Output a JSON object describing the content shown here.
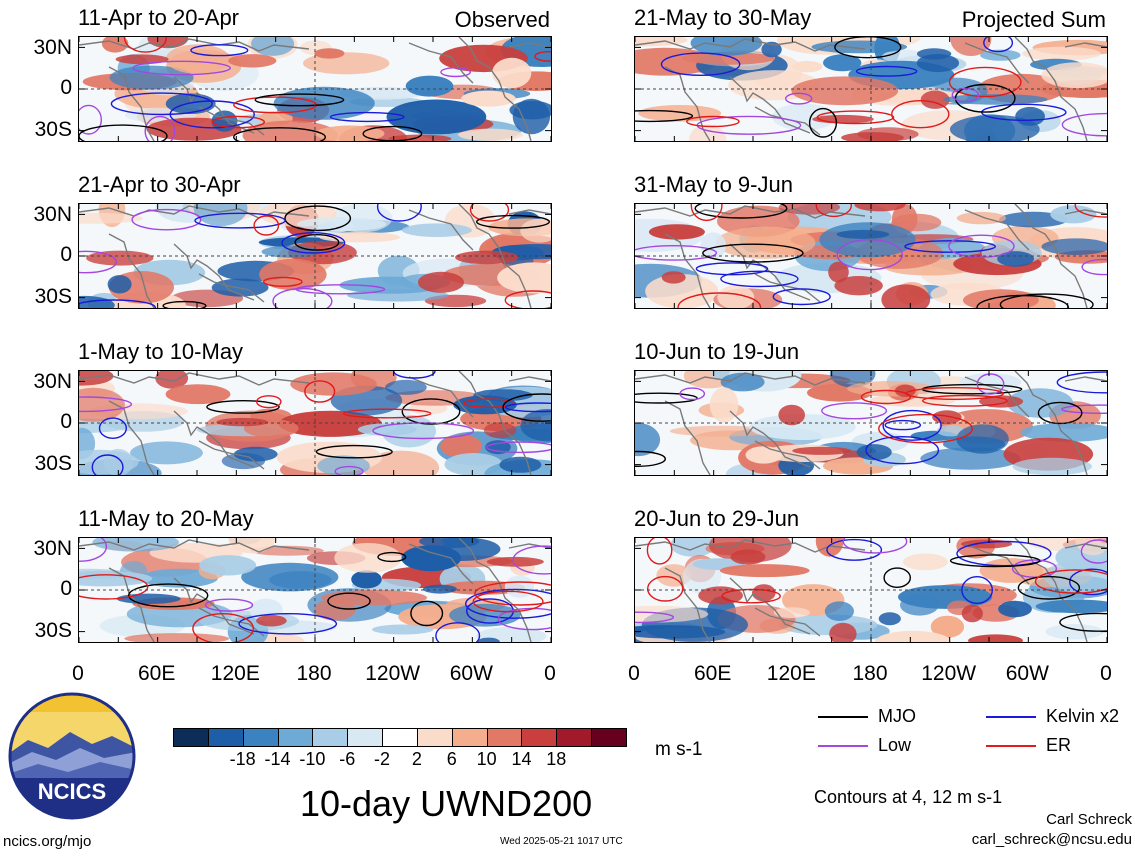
{
  "figure": {
    "title": "10-day UWND200",
    "units": "m s-1",
    "contours_note": "Contours at 4, 12 m s-1",
    "author": "Carl Schreck",
    "email": "carl_schreck@ncsu.edu",
    "website": "ncics.org/mjo",
    "timestamp": "Wed 2025-05-21 1017 UTC",
    "logo_text": "NCICS"
  },
  "chart_data": [
    {
      "type": "heatmap",
      "title": "11-Apr to 20-Apr",
      "corner_label": "Observed",
      "y_ticks": [
        "30N",
        "0",
        "30S"
      ],
      "x_ticks": []
    },
    {
      "type": "heatmap",
      "title": "21-Apr to 30-Apr",
      "corner_label": "",
      "y_ticks": [
        "30N",
        "0",
        "30S"
      ],
      "x_ticks": []
    },
    {
      "type": "heatmap",
      "title": "1-May to 10-May",
      "corner_label": "",
      "y_ticks": [
        "30N",
        "0",
        "30S"
      ],
      "x_ticks": []
    },
    {
      "type": "heatmap",
      "title": "11-May to 20-May",
      "corner_label": "",
      "y_ticks": [
        "30N",
        "0",
        "30S"
      ],
      "x_ticks": [
        "0",
        "60E",
        "120E",
        "180",
        "120W",
        "60W",
        "0"
      ]
    },
    {
      "type": "heatmap",
      "title": "21-May to 30-May",
      "corner_label": "Projected Sum",
      "y_ticks": [],
      "x_ticks": []
    },
    {
      "type": "heatmap",
      "title": "31-May to 9-Jun",
      "corner_label": "",
      "y_ticks": [],
      "x_ticks": []
    },
    {
      "type": "heatmap",
      "title": "10-Jun to 19-Jun",
      "corner_label": "",
      "y_ticks": [],
      "x_ticks": []
    },
    {
      "type": "heatmap",
      "title": "20-Jun to 29-Jun",
      "corner_label": "",
      "y_ticks": [],
      "x_ticks": [
        "0",
        "60E",
        "120E",
        "180",
        "120W",
        "60W",
        "0"
      ]
    }
  ],
  "colorbar": {
    "labels": [
      "-18",
      "-14",
      "-10",
      "-6",
      "-2",
      "2",
      "6",
      "10",
      "14",
      "18"
    ],
    "colors": [
      "#0b2d57",
      "#1e5ea8",
      "#3b82c0",
      "#6eaad6",
      "#a9cde6",
      "#d9e9f4",
      "#ffffff",
      "#fbdccb",
      "#f4ae8e",
      "#e27866",
      "#c83f3d",
      "#a11a2c",
      "#67001f"
    ]
  },
  "legend": [
    {
      "label": "MJO",
      "color": "#000000"
    },
    {
      "label": "Kelvin x2",
      "color": "#1a1adb"
    },
    {
      "label": "Low",
      "color": "#a347e0"
    },
    {
      "label": "ER",
      "color": "#e11a1a"
    }
  ]
}
